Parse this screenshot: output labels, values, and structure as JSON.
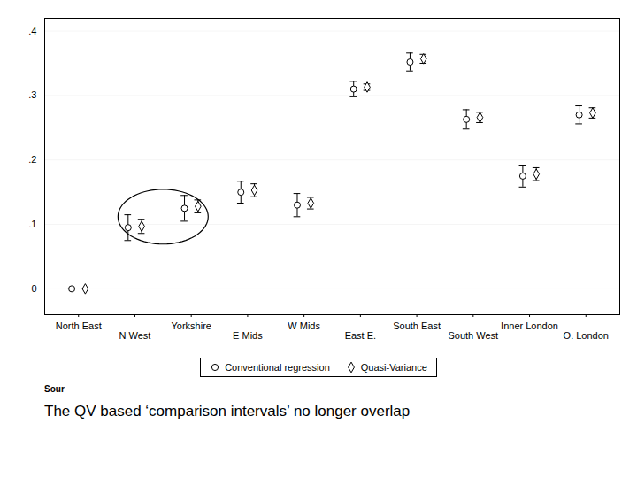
{
  "chart_data": {
    "type": "errorbar",
    "title": "The QV based ‘comparison intervals’ no longer overlap",
    "categories": [
      "North East",
      "N West",
      "Yorkshire",
      "E Mids",
      "W Mids",
      "East E.",
      "South East",
      "South West",
      "Inner London",
      "O. London"
    ],
    "series": [
      {
        "name": "Conventional regression",
        "marker": "circle",
        "color": "black",
        "values": [
          0.0,
          0.095,
          0.125,
          0.15,
          0.13,
          0.31,
          0.352,
          0.263,
          0.175,
          0.27
        ],
        "lo": [
          0.0,
          0.075,
          0.105,
          0.133,
          0.112,
          0.298,
          0.338,
          0.248,
          0.158,
          0.256
        ],
        "hi": [
          0.0,
          0.115,
          0.145,
          0.167,
          0.148,
          0.322,
          0.366,
          0.278,
          0.192,
          0.284
        ]
      },
      {
        "name": "Quasi-Variance",
        "marker": "diamond",
        "color": "black",
        "values": [
          0.0,
          0.097,
          0.128,
          0.153,
          0.133,
          0.313,
          0.357,
          0.266,
          0.178,
          0.273
        ],
        "lo": [
          0.0,
          0.086,
          0.118,
          0.143,
          0.124,
          0.308,
          0.35,
          0.258,
          0.168,
          0.265
        ],
        "hi": [
          0.0,
          0.108,
          0.138,
          0.163,
          0.142,
          0.318,
          0.364,
          0.274,
          0.188,
          0.281
        ]
      }
    ],
    "ylim": [
      -0.04,
      0.42
    ],
    "yticks": [
      0,
      {
        "value": 0.1,
        "label": ".1"
      },
      {
        "value": 0.2,
        "label": ".2"
      },
      {
        "value": 0.3,
        "label": ".3"
      },
      {
        "value": 0.4,
        "label": ".4"
      }
    ],
    "grid": true,
    "legend": "bottom",
    "annotations": [
      {
        "text": "Sour"
      },
      {
        "shape": "ellipse",
        "categories": [
          "N West",
          "Yorkshire"
        ],
        "y": 0.112,
        "height": 0.085
      }
    ]
  }
}
